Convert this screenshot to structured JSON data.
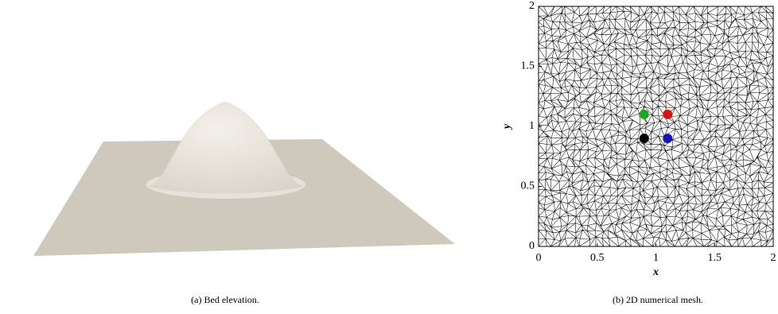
{
  "panels": [
    {
      "caption": "(a) Bed elevation."
    }
  ],
  "chart_data": {
    "type": "scatter",
    "caption": "(b) 2D numerical mesh.",
    "xlabel": "x",
    "ylabel": "y",
    "xlim": [
      0,
      2
    ],
    "ylim": [
      0,
      2
    ],
    "xticks": [
      0,
      0.5,
      1,
      1.5,
      2
    ],
    "yticks": [
      0,
      0.5,
      1,
      1.5,
      2
    ],
    "series": [
      {
        "color": "#1fa51f",
        "x": [
          0.9
        ],
        "values": [
          1.1
        ]
      },
      {
        "color": "#d41515",
        "x": [
          1.1
        ],
        "values": [
          1.1
        ]
      },
      {
        "color": "#000000",
        "x": [
          0.9
        ],
        "values": [
          0.9
        ]
      },
      {
        "color": "#1515b4",
        "x": [
          1.1
        ],
        "values": [
          0.9
        ]
      }
    ]
  }
}
